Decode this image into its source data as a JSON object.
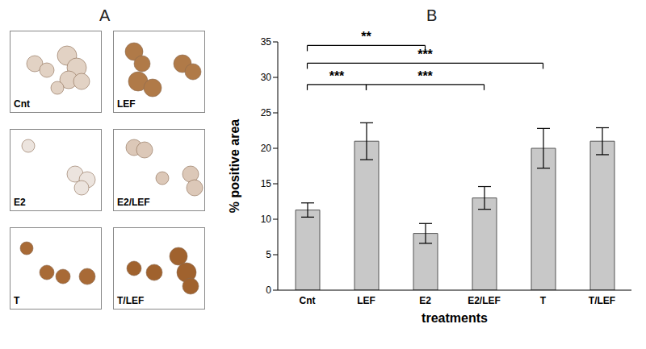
{
  "panel_a": {
    "label": "A",
    "images": [
      "Cnt",
      "LEF",
      "E2",
      "E2/LEF",
      "T",
      "T/LEF"
    ]
  },
  "chart_data": {
    "type": "bar",
    "title": "B",
    "x_label": "treatments",
    "y_label": "% positive area",
    "categories": [
      "Cnt",
      "LEF",
      "E2",
      "E2/LEF",
      "T",
      "T/LEF"
    ],
    "values": [
      11.3,
      21,
      8,
      13,
      20,
      21
    ],
    "errors": [
      1.0,
      2.6,
      1.4,
      1.6,
      2.8,
      1.9
    ],
    "color": "#c8c8c8",
    "ylim": [
      0,
      35
    ],
    "yticks": [
      0,
      5,
      10,
      15,
      20,
      25,
      30,
      35
    ],
    "grid": false,
    "annotations": [
      {
        "from": "Cnt",
        "to": "E2",
        "y": 34.5,
        "label": "**"
      },
      {
        "from": "Cnt",
        "to": "T",
        "y": 32,
        "label": "***"
      },
      {
        "from": "Cnt",
        "to": "LEF",
        "y": 29,
        "label": "***"
      },
      {
        "from": "LEF",
        "to": "E2/LEF",
        "y": 29,
        "label": "***"
      }
    ]
  }
}
